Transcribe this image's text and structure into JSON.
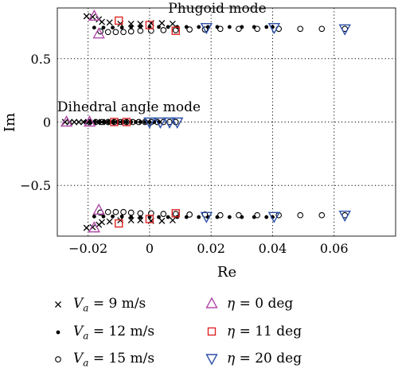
{
  "chart_data": {
    "type": "scatter",
    "title": "",
    "xlabel": "Re",
    "ylabel": "Im",
    "xlim": [
      -0.03,
      0.08
    ],
    "ylim": [
      -0.9,
      0.9
    ],
    "x_ticks": [
      -0.02,
      0,
      0.02,
      0.04,
      0.06
    ],
    "x_tick_labels": [
      "−0.02",
      "0",
      "0.02",
      "0.04",
      "0.06"
    ],
    "y_ticks": [
      -0.5,
      0,
      0.5
    ],
    "y_tick_labels": [
      "−0.5",
      "0",
      "0.5"
    ],
    "grid": true,
    "annotations": [
      {
        "text": "Phugoid mode",
        "x": 0.017,
        "y": 0.86
      },
      {
        "text": "Dihedral angle mode",
        "x": -0.0035,
        "y": 0.09
      }
    ],
    "series": [
      {
        "name": "V_a = 9 m/s",
        "marker": "x",
        "points": [
          [
            -0.0205,
            0.835
          ],
          [
            -0.0185,
            0.83
          ],
          [
            -0.0165,
            0.81
          ],
          [
            -0.0155,
            0.79
          ],
          [
            -0.013,
            0.785
          ],
          [
            -0.0095,
            0.775
          ],
          [
            -0.006,
            0.775
          ],
          [
            -0.003,
            0.775
          ],
          [
            0.0005,
            0.78
          ],
          [
            0.004,
            0.78
          ],
          [
            0.0075,
            0.775
          ],
          [
            -0.0205,
            -0.835
          ],
          [
            -0.0185,
            -0.83
          ],
          [
            -0.0165,
            -0.81
          ],
          [
            -0.0155,
            -0.79
          ],
          [
            -0.013,
            -0.785
          ],
          [
            -0.0095,
            -0.775
          ],
          [
            -0.006,
            -0.775
          ],
          [
            -0.003,
            -0.775
          ],
          [
            0.0005,
            -0.78
          ],
          [
            0.004,
            -0.78
          ],
          [
            0.0075,
            -0.775
          ],
          [
            -0.0275,
            0
          ],
          [
            -0.026,
            0
          ],
          [
            -0.0245,
            0
          ],
          [
            -0.023,
            0
          ],
          [
            -0.0215,
            0
          ],
          [
            -0.02,
            0
          ],
          [
            -0.0185,
            0
          ],
          [
            -0.017,
            0
          ],
          [
            -0.0155,
            0
          ],
          [
            -0.014,
            0
          ],
          [
            -0.0125,
            0
          ],
          [
            -0.011,
            0
          ],
          [
            -0.0095,
            0
          ],
          [
            -0.008,
            0
          ]
        ]
      },
      {
        "name": "V_a = 12 m/s",
        "marker": "dot",
        "points": [
          [
            -0.018,
            0.745
          ],
          [
            -0.015,
            0.745
          ],
          [
            -0.012,
            0.745
          ],
          [
            -0.009,
            0.745
          ],
          [
            -0.006,
            0.75
          ],
          [
            -0.003,
            0.75
          ],
          [
            0.0,
            0.75
          ],
          [
            0.003,
            0.75
          ],
          [
            0.006,
            0.75
          ],
          [
            0.009,
            0.75
          ],
          [
            0.012,
            0.75
          ],
          [
            0.016,
            0.75
          ],
          [
            0.019,
            0.75
          ],
          [
            0.022,
            0.75
          ],
          [
            0.026,
            0.75
          ],
          [
            0.03,
            0.75
          ],
          [
            0.034,
            0.75
          ],
          [
            0.038,
            0.75
          ],
          [
            0.04,
            0.75
          ],
          [
            -0.018,
            -0.745
          ],
          [
            -0.015,
            -0.745
          ],
          [
            -0.012,
            -0.745
          ],
          [
            -0.009,
            -0.745
          ],
          [
            -0.006,
            -0.75
          ],
          [
            -0.003,
            -0.75
          ],
          [
            0.0,
            -0.75
          ],
          [
            0.003,
            -0.75
          ],
          [
            0.006,
            -0.75
          ],
          [
            0.009,
            -0.75
          ],
          [
            0.012,
            -0.75
          ],
          [
            0.016,
            -0.75
          ],
          [
            0.019,
            -0.75
          ],
          [
            0.022,
            -0.75
          ],
          [
            0.026,
            -0.75
          ],
          [
            0.03,
            -0.75
          ],
          [
            0.034,
            -0.75
          ],
          [
            0.038,
            -0.75
          ],
          [
            0.04,
            -0.75
          ],
          [
            -0.021,
            0
          ],
          [
            -0.0195,
            0
          ],
          [
            -0.018,
            0
          ],
          [
            -0.0165,
            0
          ],
          [
            -0.015,
            0
          ],
          [
            -0.0135,
            0
          ],
          [
            -0.012,
            0
          ],
          [
            -0.0105,
            0
          ],
          [
            -0.009,
            0
          ],
          [
            -0.0075,
            0
          ],
          [
            -0.006,
            0
          ],
          [
            -0.0045,
            0
          ],
          [
            -0.003,
            0
          ],
          [
            -0.0015,
            0
          ],
          [
            0.0,
            0
          ],
          [
            0.0015,
            0
          ],
          [
            0.003,
            0
          ]
        ]
      },
      {
        "name": "V_a = 15 m/s",
        "marker": "circle",
        "points": [
          [
            -0.016,
            0.715
          ],
          [
            -0.0135,
            0.71
          ],
          [
            -0.011,
            0.71
          ],
          [
            -0.0085,
            0.71
          ],
          [
            -0.006,
            0.715
          ],
          [
            -0.003,
            0.72
          ],
          [
            0.0005,
            0.72
          ],
          [
            0.0045,
            0.725
          ],
          [
            0.0085,
            0.725
          ],
          [
            0.013,
            0.73
          ],
          [
            0.018,
            0.73
          ],
          [
            0.023,
            0.735
          ],
          [
            0.029,
            0.735
          ],
          [
            0.035,
            0.735
          ],
          [
            0.042,
            0.735
          ],
          [
            0.049,
            0.735
          ],
          [
            0.056,
            0.735
          ],
          [
            0.0635,
            0.735
          ],
          [
            -0.016,
            -0.715
          ],
          [
            -0.0135,
            -0.71
          ],
          [
            -0.011,
            -0.71
          ],
          [
            -0.0085,
            -0.71
          ],
          [
            -0.006,
            -0.715
          ],
          [
            -0.003,
            -0.72
          ],
          [
            0.0005,
            -0.72
          ],
          [
            0.0045,
            -0.725
          ],
          [
            0.0085,
            -0.725
          ],
          [
            0.013,
            -0.73
          ],
          [
            0.018,
            -0.73
          ],
          [
            0.023,
            -0.735
          ],
          [
            0.029,
            -0.735
          ],
          [
            0.035,
            -0.735
          ],
          [
            0.042,
            -0.735
          ],
          [
            0.049,
            -0.735
          ],
          [
            0.056,
            -0.735
          ],
          [
            0.0635,
            -0.735
          ],
          [
            -0.0195,
            0
          ],
          [
            -0.0175,
            0
          ],
          [
            -0.0155,
            0
          ],
          [
            -0.0135,
            0
          ],
          [
            -0.0115,
            0
          ],
          [
            -0.0095,
            0
          ],
          [
            -0.0075,
            0
          ],
          [
            -0.0055,
            0
          ],
          [
            -0.0035,
            0
          ],
          [
            -0.0015,
            0
          ],
          [
            0.0005,
            0
          ],
          [
            0.0025,
            0
          ],
          [
            0.0045,
            0
          ],
          [
            0.0065,
            0
          ],
          [
            0.0085,
            0
          ]
        ]
      },
      {
        "name": "η = 0 deg",
        "marker": "triangle-up",
        "color": "#b04aa8",
        "points": [
          [
            -0.018,
            0.835
          ],
          [
            -0.0165,
            0.695
          ],
          [
            -0.018,
            -0.835
          ],
          [
            -0.0165,
            -0.695
          ],
          [
            -0.027,
            0
          ],
          [
            -0.0195,
            0
          ]
        ]
      },
      {
        "name": "η = 11 deg",
        "marker": "square",
        "color": "#e02424",
        "points": [
          [
            -0.01,
            0.8
          ],
          [
            0.0,
            0.765
          ],
          [
            0.0085,
            0.72
          ],
          [
            -0.01,
            -0.8
          ],
          [
            0.0,
            -0.765
          ],
          [
            0.0085,
            -0.72
          ],
          [
            -0.0115,
            0
          ],
          [
            -0.0075,
            0
          ]
        ]
      },
      {
        "name": "η = 20 deg",
        "marker": "triangle-down",
        "color": "#2b4fa8",
        "points": [
          [
            0.0185,
            0.745
          ],
          [
            0.0405,
            0.745
          ],
          [
            0.0635,
            0.735
          ],
          [
            0.0185,
            -0.745
          ],
          [
            0.0405,
            -0.745
          ],
          [
            0.0635,
            -0.735
          ],
          [
            0.0,
            0
          ],
          [
            0.0035,
            0
          ],
          [
            0.0065,
            0
          ],
          [
            0.009,
            0
          ]
        ]
      }
    ]
  },
  "legend": {
    "items": [
      {
        "symbol": "x",
        "label_main": "V",
        "label_sub": "a",
        "label_rest": " = 9 m/s"
      },
      {
        "symbol": "dot",
        "label_main": "V",
        "label_sub": "a",
        "label_rest": " = 12 m/s"
      },
      {
        "symbol": "circle",
        "label_main": "V",
        "label_sub": "a",
        "label_rest": " = 15 m/s"
      },
      {
        "symbol": "triangle-up",
        "color": "#b04aa8",
        "label_main": "η",
        "label_rest": " = 0 deg"
      },
      {
        "symbol": "square",
        "color": "#e02424",
        "label_main": "η",
        "label_rest": " = 11 deg"
      },
      {
        "symbol": "triangle-down",
        "color": "#2b4fa8",
        "label_main": "η",
        "label_rest": " = 20 deg"
      }
    ]
  }
}
